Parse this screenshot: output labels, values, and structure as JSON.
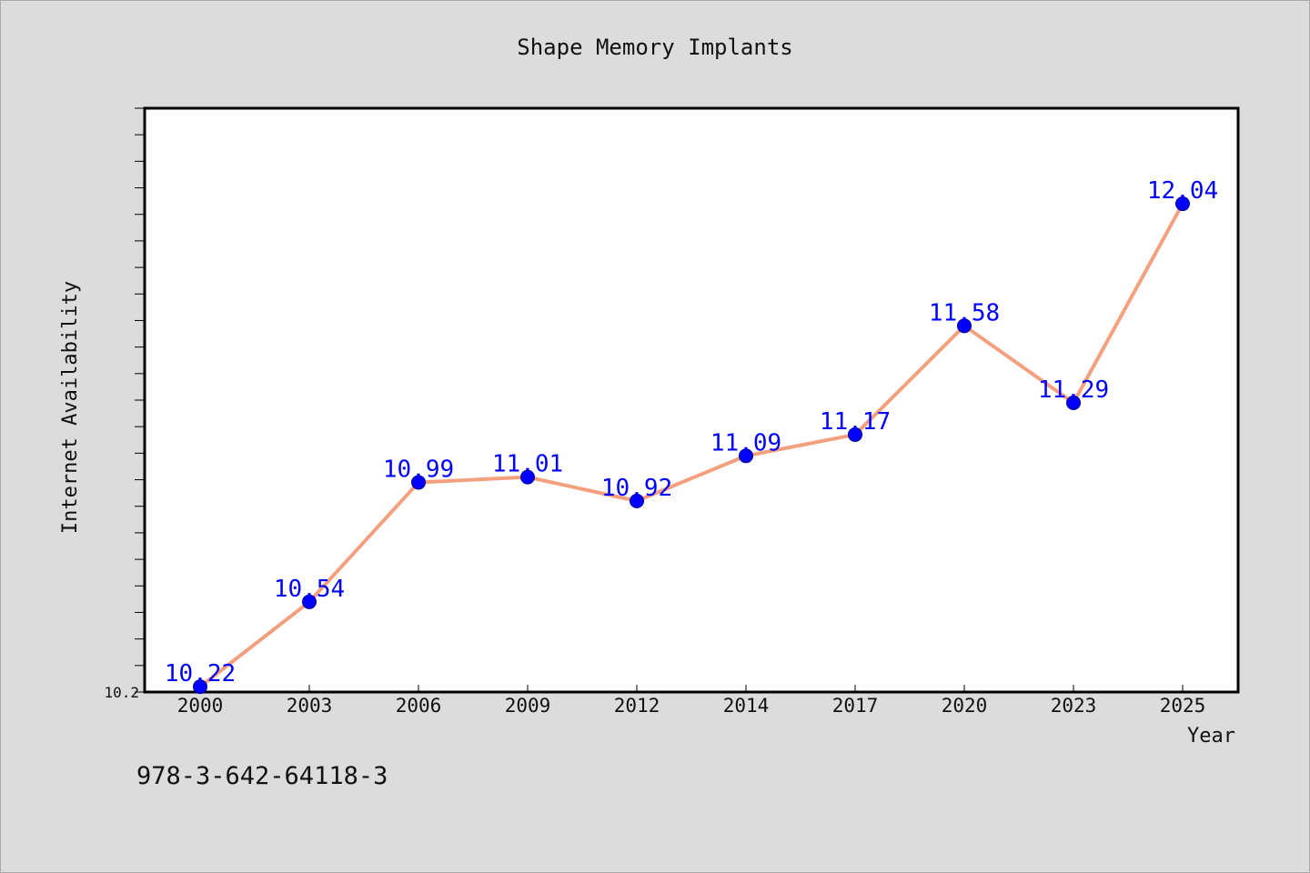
{
  "chart_data": {
    "type": "line",
    "title": "Shape Memory Implants",
    "xlabel": "Year",
    "ylabel": "Internet Availability",
    "categories": [
      "2000",
      "2003",
      "2006",
      "2009",
      "2012",
      "2014",
      "2017",
      "2020",
      "2023",
      "2025"
    ],
    "series": [
      {
        "values": [
          10.22,
          10.54,
          10.99,
          11.01,
          10.92,
          11.09,
          11.17,
          11.58,
          11.29,
          12.04
        ],
        "labels": [
          "10.22",
          "10.54",
          "10.99",
          "11.01",
          "10.92",
          "11.09",
          "11.17",
          "11.58",
          "11.29",
          "12.04"
        ]
      }
    ],
    "ylim": [
      10.2,
      12.4
    ],
    "y_tick_step": 0.1,
    "y_tick_labels": [
      "10.2"
    ],
    "grid": false,
    "legend": "none",
    "colors": {
      "line": "#f4a07e",
      "marker": "#0000ff",
      "data_label": "#0000ff",
      "background": "#dcdcdc",
      "plot_background": "#ffffff"
    }
  },
  "footer": {
    "isbn": "978-3-642-64118-3"
  }
}
